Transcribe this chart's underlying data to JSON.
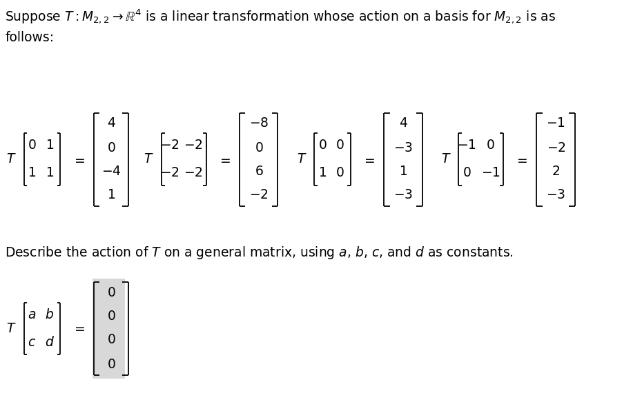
{
  "bg_color": "#ffffff",
  "text_color": "#000000",
  "title_line1": "Suppose $T: M_{2,2}\\rightarrow\\mathbb{R}^4$ is a linear transformation whose action on a basis for $M_{2,2}$ is as",
  "title_line2": "follows:",
  "desc_line": "Describe the action of $T$ on a general matrix, using $a$, $b$, $c$, and $d$ as constants.",
  "font_size_main": 13.5,
  "font_size_matrix": 13.5
}
